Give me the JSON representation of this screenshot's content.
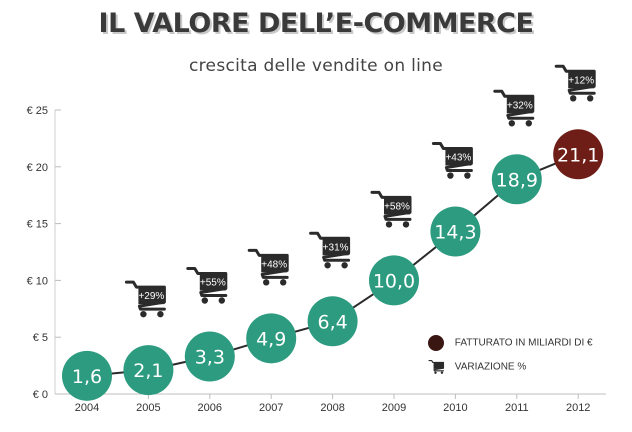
{
  "title": "IL VALORE DELL’E-COMMERCE",
  "subtitle": "crescita delle vendite on line",
  "colors": {
    "teal": "#2c9b7f",
    "dark_red": "#6e1e16",
    "dark": "#2b2b2b"
  },
  "legend": {
    "revenue_label": "FATTURATO IN MILIARDI DI €",
    "variation_label": "VARIAZIONE %",
    "revenue_icon": "dark-red-dot-icon",
    "variation_icon": "shopping-cart-icon"
  },
  "chart_data": {
    "type": "scatter",
    "title": "IL VALORE DELL’E-COMMERCE",
    "subtitle": "crescita delle vendite on line",
    "categories": [
      "2004",
      "2005",
      "2006",
      "2007",
      "2008",
      "2009",
      "2010",
      "2011",
      "2012"
    ],
    "values": [
      1.6,
      2.1,
      3.3,
      4.9,
      6.4,
      10.0,
      14.3,
      18.9,
      21.1
    ],
    "value_labels": [
      "1,6",
      "2,1",
      "3,3",
      "4,9",
      "6,4",
      "10,0",
      "14,3",
      "18,9",
      "21,1"
    ],
    "variation": [
      null,
      "+29%",
      "+55%",
      "+48%",
      "+31%",
      "+58%",
      "+43%",
      "+32%",
      "+12%"
    ],
    "ylim": [
      0,
      25
    ],
    "yticks": [
      0,
      5,
      10,
      15,
      20,
      25
    ],
    "ytick_labels": [
      "€ 0",
      "€ 5",
      "€ 10",
      "€ 15",
      "€ 20",
      "€ 25"
    ],
    "xlabel": "",
    "ylabel": "",
    "legend": [
      "FATTURATO IN MILIARDI DI €",
      "VARIAZIONE %"
    ]
  }
}
